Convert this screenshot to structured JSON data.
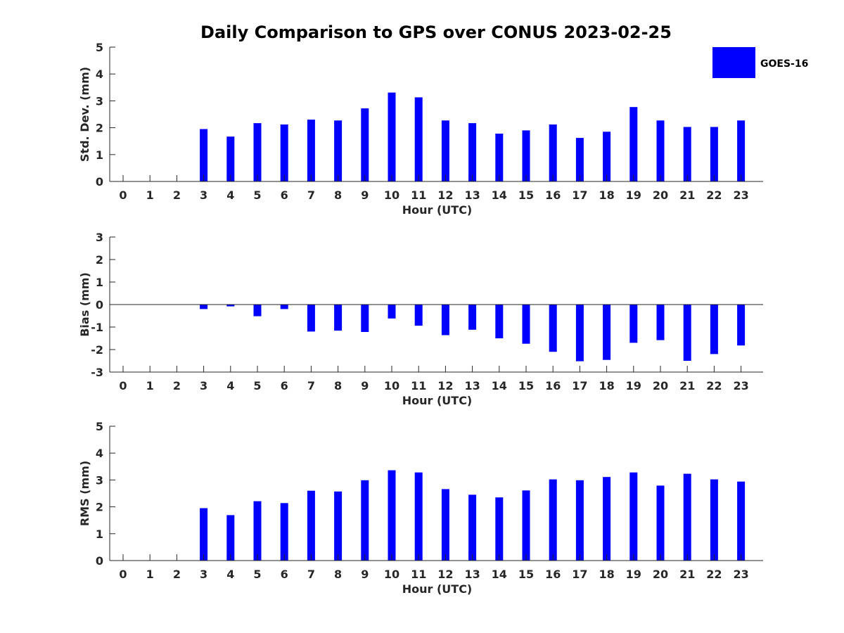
{
  "chart_data": {
    "type": "bar",
    "title": "Daily Comparison to GPS over CONUS 2023-02-25",
    "legend": {
      "placement": "top-right",
      "label": "GOES-16"
    },
    "color": "#0000ff",
    "panels": [
      {
        "ylabel": "Std. Dev. (mm)",
        "xlabel": "Hour (UTC)",
        "ylim": [
          0,
          5
        ],
        "yticks": [
          0,
          1,
          2,
          3,
          4,
          5
        ],
        "categories": [
          0,
          1,
          2,
          3,
          4,
          5,
          6,
          7,
          8,
          9,
          10,
          11,
          12,
          13,
          14,
          15,
          16,
          17,
          18,
          19,
          20,
          21,
          22,
          23
        ],
        "series": [
          {
            "name": "GOES-16",
            "values": [
              null,
              null,
              null,
              1.95,
              1.67,
              2.17,
              2.12,
              2.3,
              2.27,
              2.72,
              3.31,
              3.13,
              2.27,
              2.17,
              1.78,
              1.9,
              2.12,
              1.62,
              1.85,
              2.77,
              2.27,
              2.03,
              2.03,
              2.27
            ]
          }
        ]
      },
      {
        "ylabel": "Bias (mm)",
        "xlabel": "Hour (UTC)",
        "ylim": [
          -3,
          3
        ],
        "yticks": [
          -3,
          -2,
          -1,
          0,
          1,
          2,
          3
        ],
        "categories": [
          0,
          1,
          2,
          3,
          4,
          5,
          6,
          7,
          8,
          9,
          10,
          11,
          12,
          13,
          14,
          15,
          16,
          17,
          18,
          19,
          20,
          21,
          22,
          23
        ],
        "series": [
          {
            "name": "GOES-16",
            "values": [
              null,
              null,
              null,
              -0.2,
              -0.08,
              -0.52,
              -0.2,
              -1.2,
              -1.16,
              -1.22,
              -0.62,
              -0.94,
              -1.36,
              -1.12,
              -1.5,
              -1.74,
              -2.1,
              -2.52,
              -2.46,
              -1.7,
              -1.58,
              -2.5,
              -2.2,
              -1.82
            ]
          }
        ]
      },
      {
        "ylabel": "RMS (mm)",
        "xlabel": "Hour (UTC)",
        "ylim": [
          0,
          5
        ],
        "yticks": [
          0,
          1,
          2,
          3,
          4,
          5
        ],
        "categories": [
          0,
          1,
          2,
          3,
          4,
          5,
          6,
          7,
          8,
          9,
          10,
          11,
          12,
          13,
          14,
          15,
          16,
          17,
          18,
          19,
          20,
          21,
          22,
          23
        ],
        "series": [
          {
            "name": "GOES-16",
            "values": [
              null,
              null,
              null,
              1.95,
              1.69,
              2.21,
              2.14,
              2.6,
              2.57,
              2.99,
              3.36,
              3.28,
              2.66,
              2.45,
              2.35,
              2.61,
              3.02,
              2.99,
              3.11,
              3.28,
              2.79,
              3.23,
              3.02,
              2.94
            ]
          }
        ]
      }
    ]
  }
}
